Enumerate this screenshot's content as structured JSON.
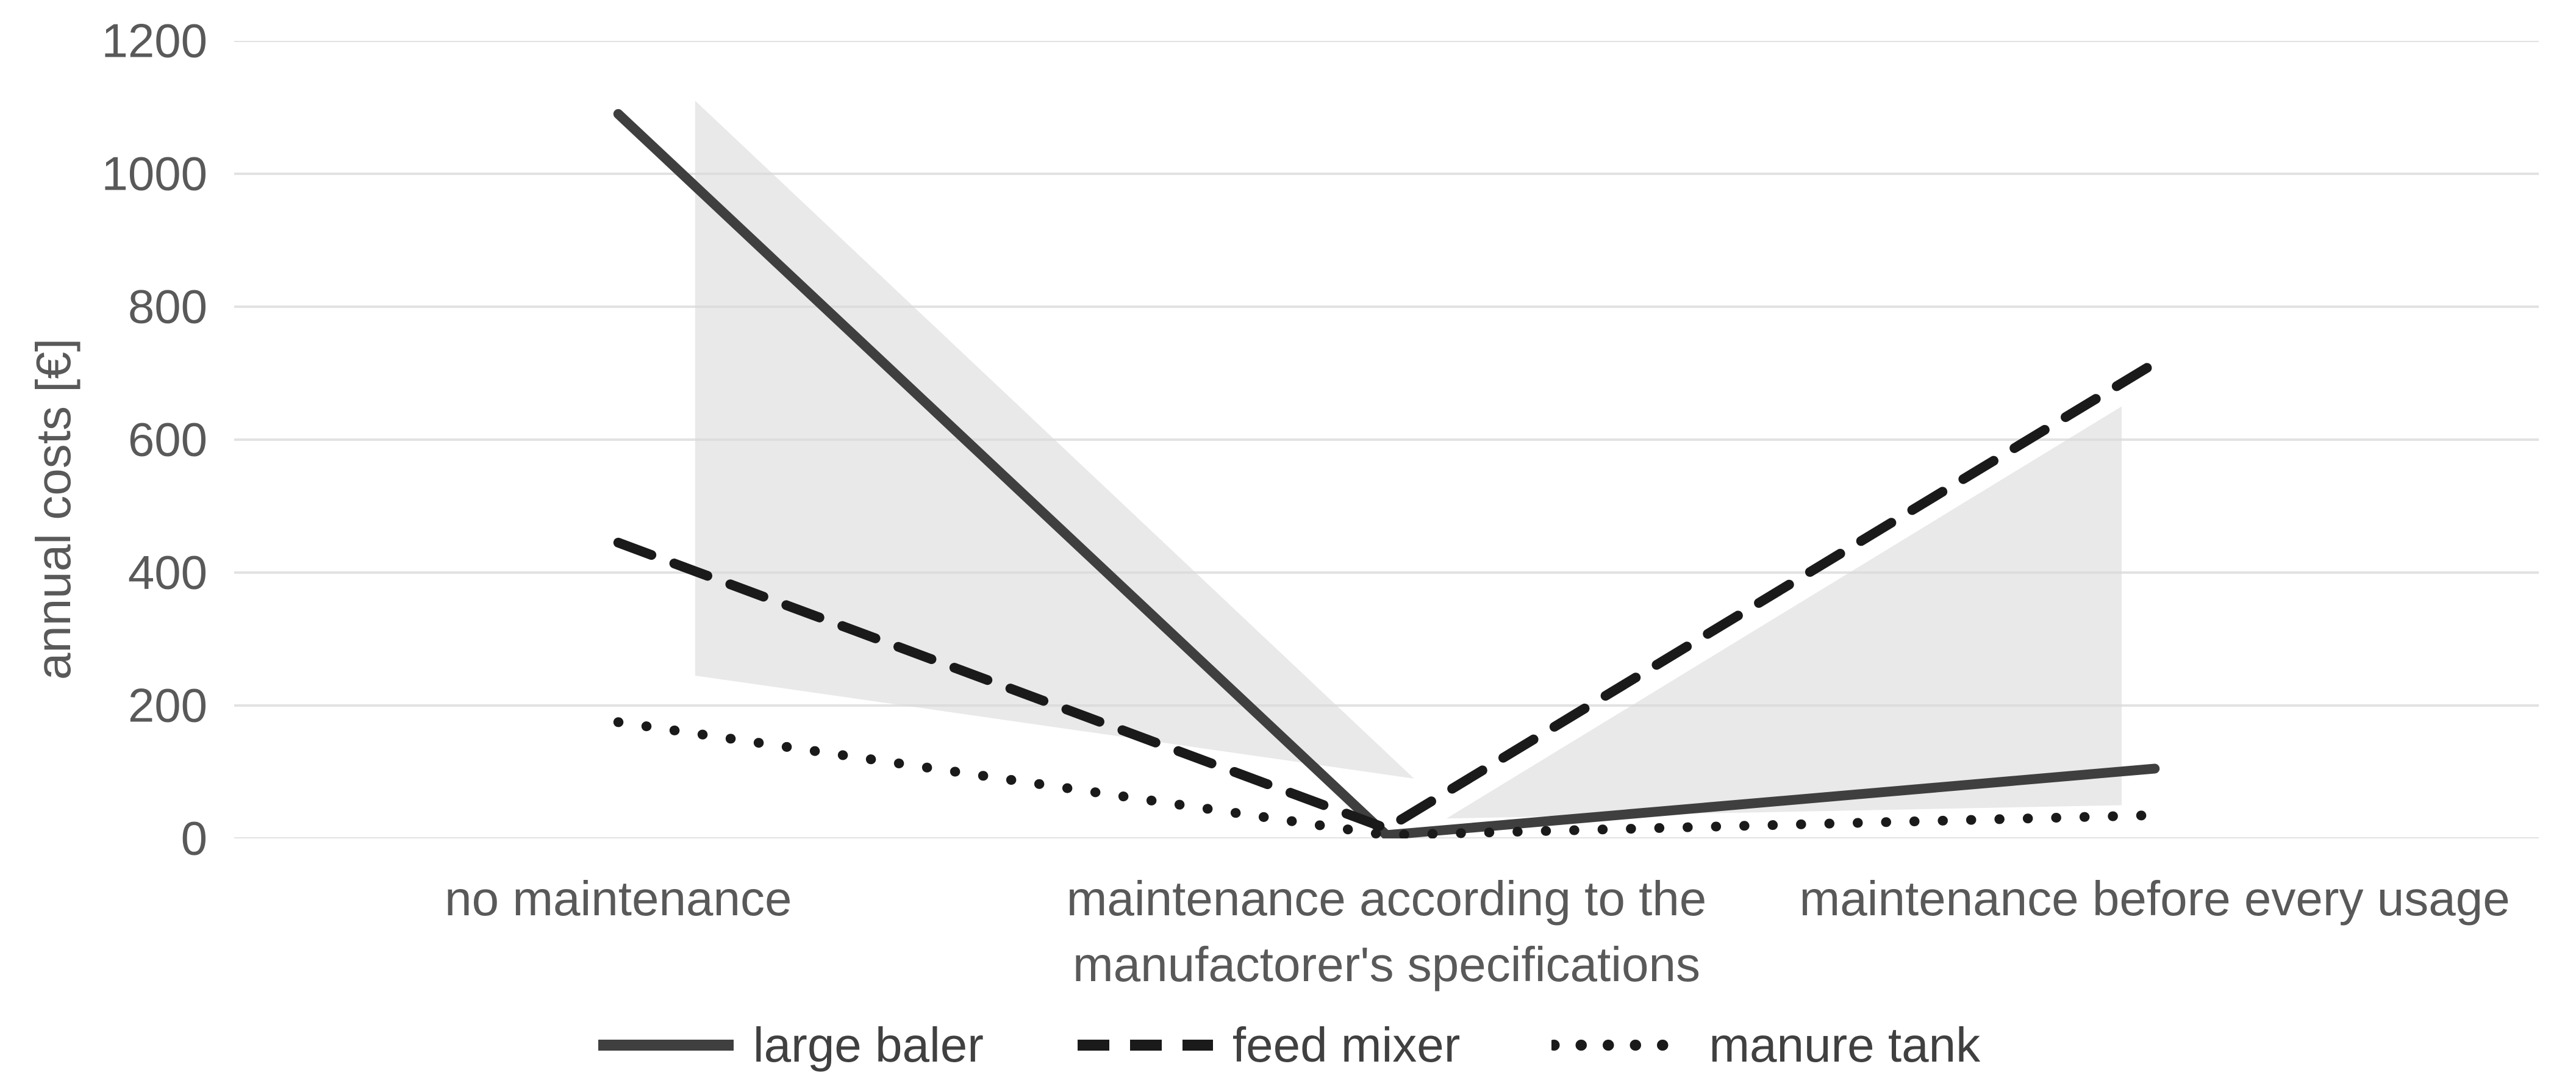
{
  "y_axis": {
    "title": "annual costs [€]",
    "ticks": [
      "1200",
      "1000",
      "800",
      "600",
      "400",
      "200",
      "0"
    ]
  },
  "x_axis": {
    "categories": [
      "no maintenance",
      "maintenance according to the manufactorer's specifications",
      "maintenance before every usage"
    ]
  },
  "legend": [
    {
      "label": "large baler",
      "style": "solid"
    },
    {
      "label": "feed mixer",
      "style": "dashed"
    },
    {
      "label": "manure tank",
      "style": "dotted"
    }
  ],
  "colors": {
    "solid_line": "#3f3f3f",
    "dashed_line": "#1a1a1a",
    "dotted_line": "#1a1a1a",
    "gridline": "#d9d9d9",
    "band": "#e9e9e9",
    "axis_text": "#595959",
    "legend_text": "#404040",
    "background": "#ffffff"
  },
  "chart_data": {
    "type": "line",
    "title": "",
    "xlabel": "",
    "ylabel": "annual costs [€]",
    "ylim": [
      0,
      1200
    ],
    "ytick_step": 200,
    "grid": true,
    "legend_position": "bottom",
    "categories": [
      "no maintenance",
      "maintenance according to the manufactorer's specifications",
      "maintenance before every usage"
    ],
    "series": [
      {
        "name": "large baler",
        "dash": "solid",
        "values": [
          1090,
          5,
          105
        ]
      },
      {
        "name": "feed mixer",
        "dash": "dashed",
        "values": [
          445,
          15,
          715
        ]
      },
      {
        "name": "manure tank",
        "dash": "dotted",
        "values": [
          175,
          5,
          35
        ]
      }
    ],
    "range_band": {
      "description": "light gray shaded min-max band behind the lines, drawn as two polygons; x is fraction of plot width, v is value in euros",
      "polygons": [
        [
          {
            "x": 0.2,
            "v": 1110
          },
          {
            "x": 0.2,
            "v": 245
          },
          {
            "x": 0.512,
            "v": 90
          }
        ],
        [
          {
            "x": 0.526,
            "v": 30
          },
          {
            "x": 0.819,
            "v": 650
          },
          {
            "x": 0.819,
            "v": 50
          }
        ]
      ]
    }
  }
}
